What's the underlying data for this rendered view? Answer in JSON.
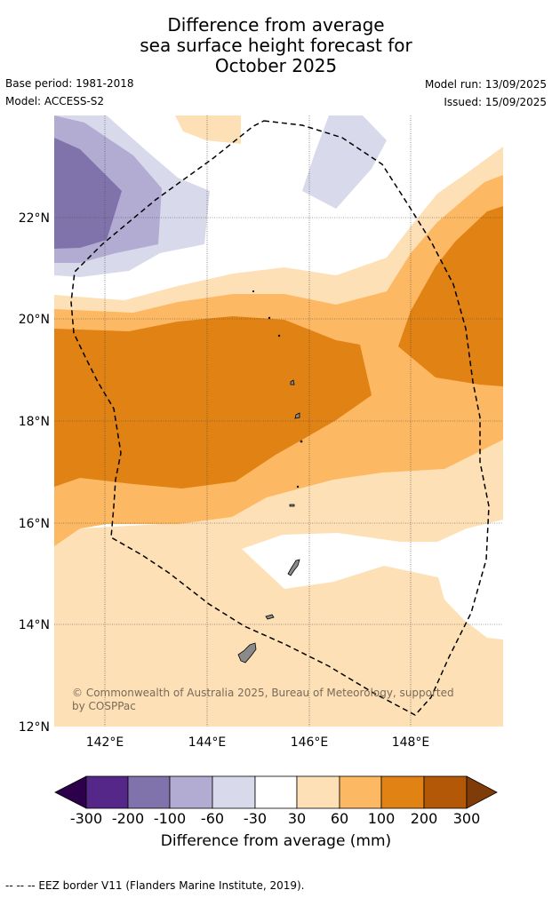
{
  "title": {
    "line1": "Difference from average",
    "line2": "sea surface height forecast for",
    "line3": "October 2025"
  },
  "meta": {
    "base_period": "Base period: 1981-2018",
    "model": "Model: ACCESS-S2",
    "model_run": "Model run: 13/09/2025",
    "issued": "Issued: 15/09/2025"
  },
  "axes": {
    "lon_ticks": [
      "142°E",
      "144°E",
      "146°E",
      "148°E"
    ],
    "lat_ticks": [
      "22°N",
      "20°N",
      "18°N",
      "16°N",
      "14°N",
      "12°N"
    ]
  },
  "copyright": {
    "line1": "© Commonwealth of Australia 2025, Bureau of Meteorology, supported",
    "line2": "by COSPPac"
  },
  "colorbar": {
    "label": "Difference from average (mm)",
    "ticks": [
      "-300",
      "-200",
      "-100",
      "-60",
      "-30",
      "30",
      "60",
      "100",
      "200",
      "300"
    ],
    "colors": {
      "below": "#2d004b",
      "c1": "#542788",
      "c2": "#8073ac",
      "c3": "#b2abd2",
      "c4": "#d8daeb",
      "c5": "#ffffff",
      "c6": "#fee0b6",
      "c7": "#fdb863",
      "c8": "#e08214",
      "c9": "#b35806",
      "above": "#7f3b08"
    }
  },
  "footnote": "--  --  -- EEZ border V11 (Flanders Marine Institute, 2019)."
}
